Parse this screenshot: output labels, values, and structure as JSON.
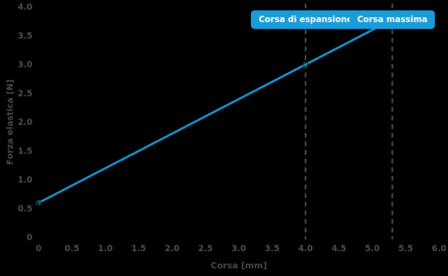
{
  "chart_data": {
    "type": "line",
    "title": "",
    "xlabel": "Corsa [mm]",
    "ylabel": "Forza elastica [N]",
    "xlim": [
      0,
      6.0
    ],
    "ylim": [
      0,
      4.0
    ],
    "xticks": [
      "0",
      "0.5",
      "1.0",
      "1.5",
      "2.0",
      "2.5",
      "3.0",
      "3.5",
      "4.0",
      "4.5",
      "5.0",
      "5.5",
      "6.0"
    ],
    "yticks": [
      "0",
      "0.5",
      "1.0",
      "1.5",
      "2.0",
      "2.5",
      "3.0",
      "3.5",
      "4.0"
    ],
    "grid": false,
    "legend": "none",
    "background_color": "#000000",
    "tick_color": "#4f4f4f",
    "series": [
      {
        "name": "forza-elastica",
        "color": "#1a9cd8",
        "line_width": 3,
        "x": [
          0,
          4.0,
          5.3
        ],
        "y": [
          0.6,
          3.0,
          3.78
        ],
        "marker_points": [
          [
            0,
            0.6
          ],
          [
            4.0,
            3.0
          ]
        ],
        "marker_edge_color": "#1f3f52"
      }
    ],
    "annotations": [
      {
        "type": "vline-dashed",
        "x": 4.0,
        "label": "Corsa di espansione",
        "line_color": "#545454",
        "badge_color": "#1a9cd8",
        "badge_text_color": "#ffffff"
      },
      {
        "type": "vline-dashed",
        "x": 5.3,
        "label": "Corsa massima",
        "line_color": "#545454",
        "badge_color": "#1a9cd8",
        "badge_text_color": "#ffffff"
      }
    ]
  }
}
